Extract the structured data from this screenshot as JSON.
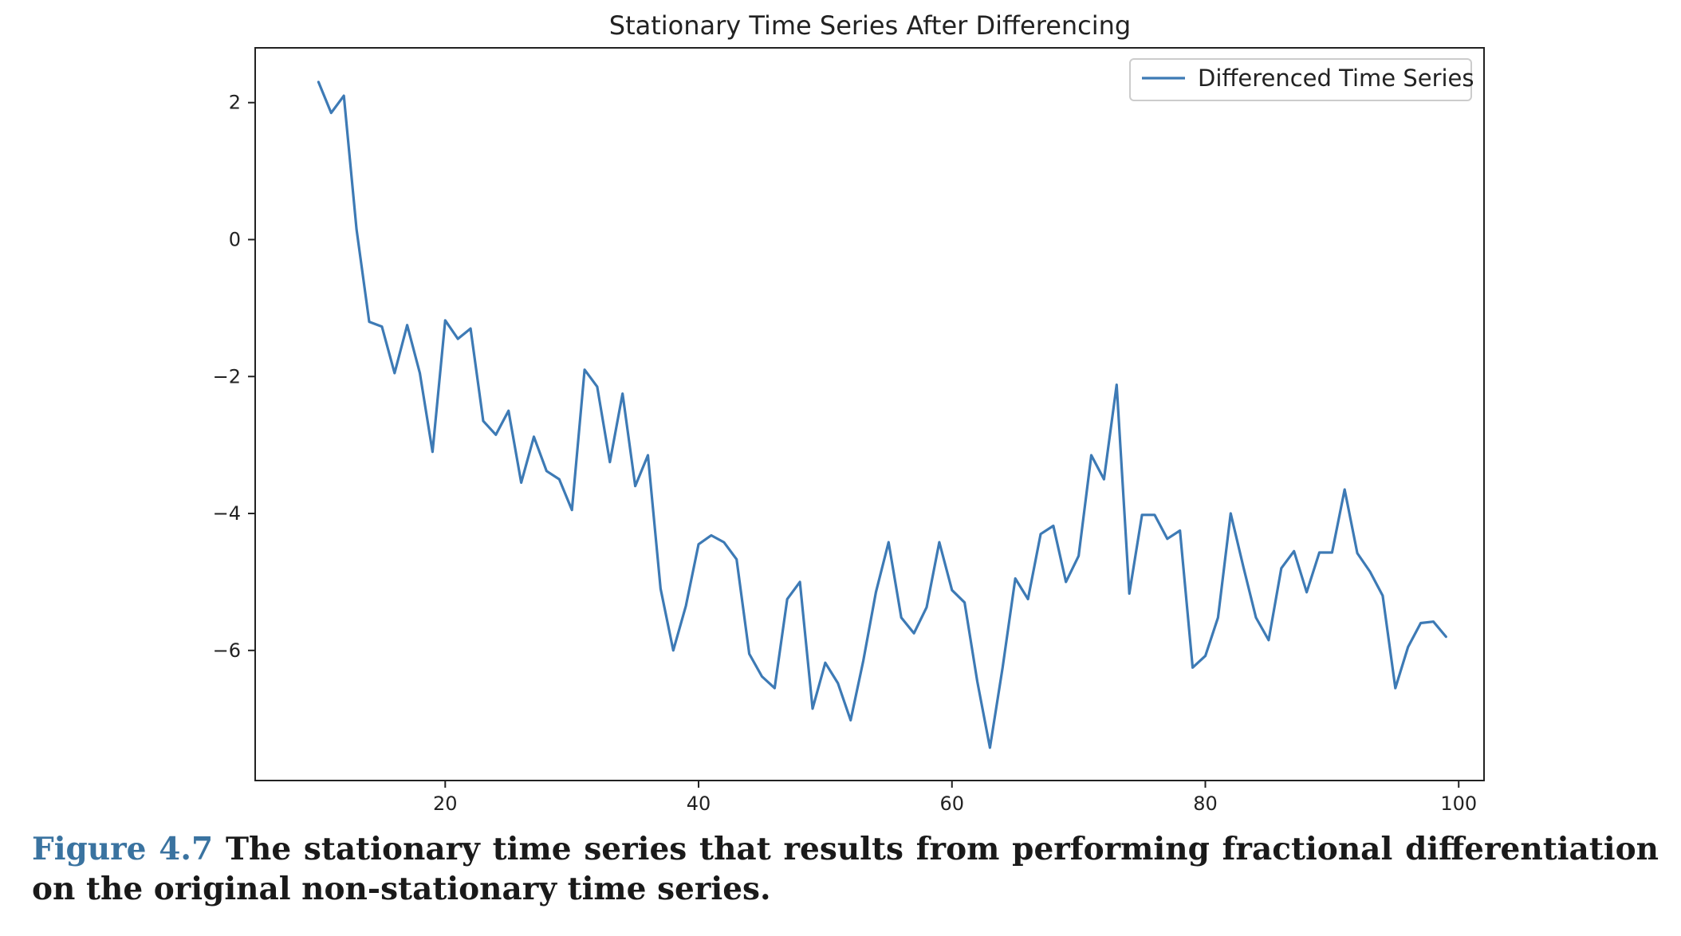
{
  "chart_data": {
    "type": "line",
    "title": "Stationary Time Series After Differencing",
    "xlabel": "",
    "ylabel": "",
    "xlim": [
      5,
      102
    ],
    "ylim": [
      -7.9,
      2.8
    ],
    "xticks": [
      20,
      40,
      60,
      80,
      100
    ],
    "yticks": [
      2,
      0,
      -2,
      -4,
      -6
    ],
    "ytick_labels": [
      "2",
      "0",
      "−2",
      "−4",
      "−6"
    ],
    "grid": false,
    "legend": "upper right",
    "series": [
      {
        "name": "Differenced Time Series",
        "color": "#3d7ab5",
        "x": [
          10,
          11,
          12,
          13,
          14,
          15,
          16,
          17,
          18,
          19,
          20,
          21,
          22,
          23,
          24,
          25,
          26,
          27,
          28,
          29,
          30,
          31,
          32,
          33,
          34,
          35,
          36,
          37,
          38,
          39,
          40,
          41,
          42,
          43,
          44,
          45,
          46,
          47,
          48,
          49,
          50,
          51,
          52,
          53,
          54,
          55,
          56,
          57,
          58,
          59,
          60,
          61,
          62,
          63,
          64,
          65,
          66,
          67,
          68,
          69,
          70,
          71,
          72,
          73,
          74,
          75,
          76,
          77,
          78,
          79,
          80,
          81,
          82,
          83,
          84,
          85,
          86,
          87,
          88,
          89,
          90,
          91,
          92,
          93,
          94,
          95,
          96,
          97,
          98,
          99
        ],
        "y": [
          2.3,
          1.85,
          2.1,
          0.15,
          -1.2,
          -1.27,
          -1.95,
          -1.25,
          -1.95,
          -3.1,
          -1.18,
          -1.45,
          -1.3,
          -2.65,
          -2.85,
          -2.5,
          -3.55,
          -2.88,
          -3.38,
          -3.5,
          -3.95,
          -1.9,
          -2.15,
          -3.25,
          -2.25,
          -3.6,
          -3.15,
          -5.1,
          -6.0,
          -5.35,
          -4.45,
          -4.32,
          -4.42,
          -4.67,
          -6.05,
          -6.38,
          -6.55,
          -5.25,
          -5.0,
          -6.85,
          -6.18,
          -6.48,
          -7.02,
          -6.15,
          -5.15,
          -4.42,
          -5.52,
          -5.75,
          -5.37,
          -4.42,
          -5.12,
          -5.3,
          -6.45,
          -7.42,
          -6.25,
          -4.95,
          -5.25,
          -4.3,
          -4.18,
          -5.0,
          -4.62,
          -3.15,
          -3.5,
          -2.12,
          -5.17,
          -4.02,
          -4.02,
          -4.37,
          -4.25,
          -6.25,
          -6.08,
          -5.52,
          -4.0,
          -4.78,
          -5.52,
          -5.85,
          -4.8,
          -4.55,
          -5.15,
          -4.57,
          -4.57,
          -3.65,
          -4.58,
          -4.85,
          -5.2,
          -6.55,
          -5.95,
          -5.6,
          -5.58,
          -5.8
        ]
      }
    ]
  },
  "caption": {
    "label": "Figure 4.7",
    "text": " The stationary time series that results from performing fractional differentiation on the original non-stationary time series."
  }
}
